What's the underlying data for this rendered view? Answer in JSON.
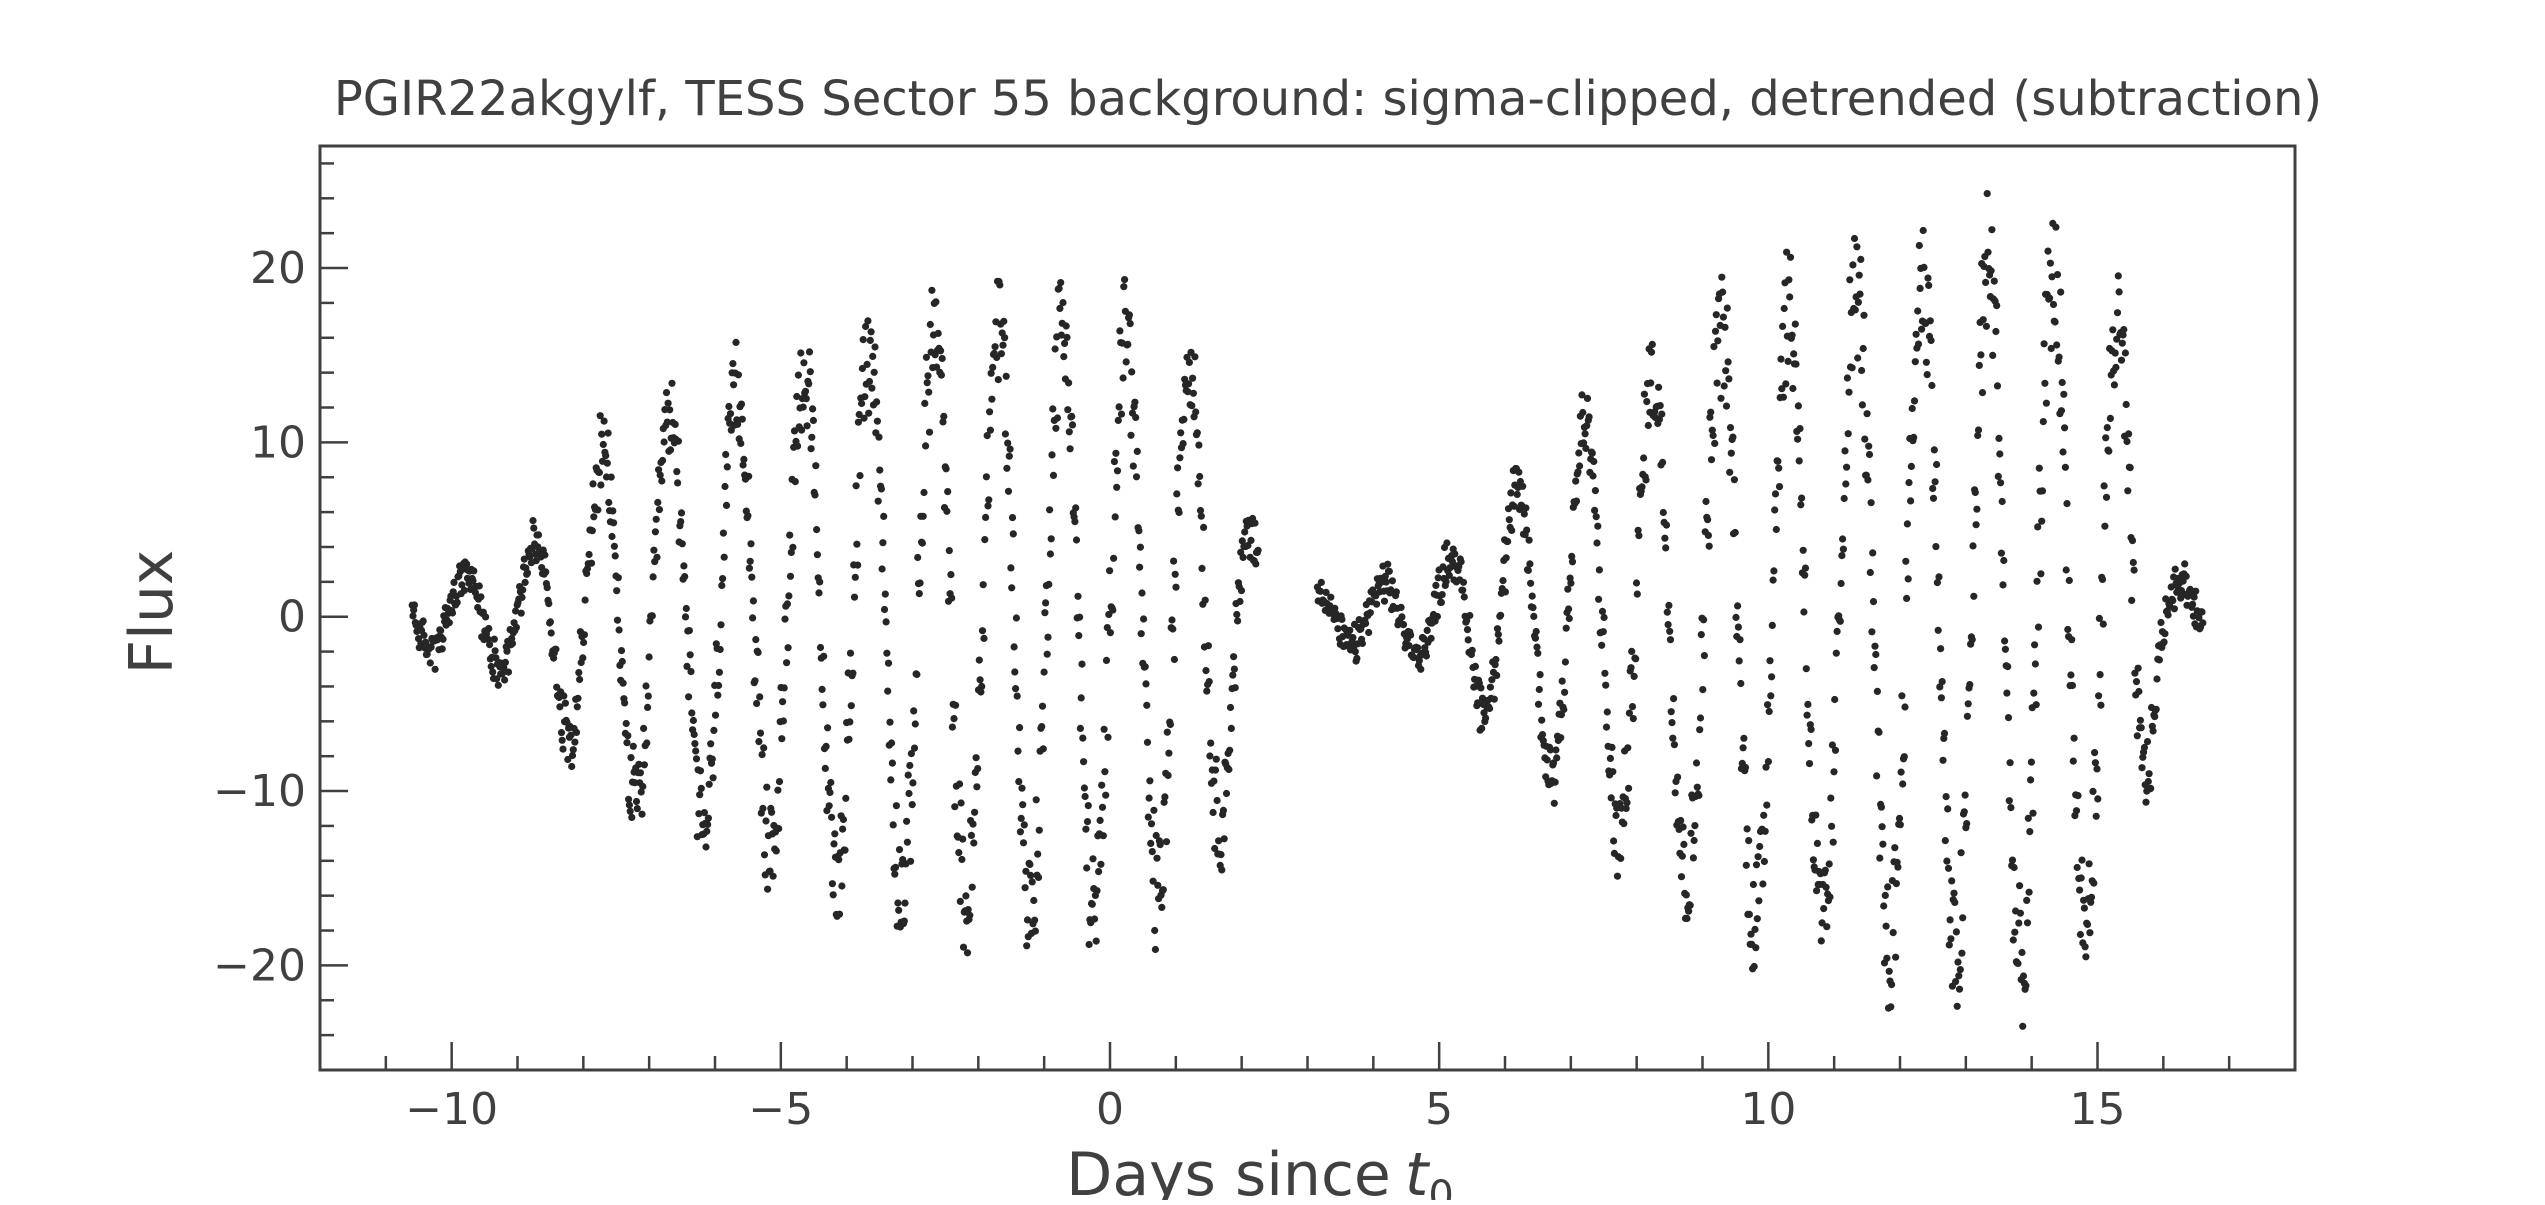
{
  "chart_data": {
    "type": "scatter",
    "title": "PGIR22akgylf, TESS Sector 55 background: sigma-clipped, detrended (subtraction)",
    "xlabel": "Days since",
    "xlabel_sub": "t",
    "xlabel_subscript": "0",
    "ylabel": "Flux",
    "xlim": [
      -12,
      18
    ],
    "ylim": [
      -26,
      27
    ],
    "grid": false,
    "marker_color": "#262626",
    "axis_color": "#404040",
    "x_ticks": [
      {
        "value": -10,
        "label": "−10"
      },
      {
        "value": -5,
        "label": "−5"
      },
      {
        "value": 0,
        "label": "0"
      },
      {
        "value": 5,
        "label": "5"
      },
      {
        "value": 10,
        "label": "10"
      },
      {
        "value": 15,
        "label": "15"
      }
    ],
    "y_ticks": [
      {
        "value": -20,
        "label": "−20"
      },
      {
        "value": -10,
        "label": "−10"
      },
      {
        "value": 0,
        "label": "0"
      },
      {
        "value": 10,
        "label": "10"
      },
      {
        "value": 20,
        "label": "20"
      }
    ],
    "segments": [
      {
        "x_start": -10.6,
        "x_end": 2.25
      },
      {
        "x_start": 3.15,
        "x_end": 16.6
      }
    ],
    "envelope": [
      {
        "x": -10.6,
        "amp": 2.0
      },
      {
        "x": -9.0,
        "amp": 3.5
      },
      {
        "x": -7.5,
        "amp": 12.0
      },
      {
        "x": -5.0,
        "amp": 16.0
      },
      {
        "x": -2.5,
        "amp": 19.5
      },
      {
        "x": 0.0,
        "amp": 20.0
      },
      {
        "x": 1.5,
        "amp": 17.0
      },
      {
        "x": 2.25,
        "amp": 4.0
      },
      {
        "x": 3.15,
        "amp": 1.8
      },
      {
        "x": 4.8,
        "amp": 2.5
      },
      {
        "x": 6.0,
        "amp": 7.5
      },
      {
        "x": 7.5,
        "amp": 14.0
      },
      {
        "x": 9.5,
        "amp": 20.0
      },
      {
        "x": 11.5,
        "amp": 22.0
      },
      {
        "x": 13.9,
        "amp": 24.5
      },
      {
        "x": 15.5,
        "amp": 19.0
      },
      {
        "x": 16.0,
        "amp": 3.0
      },
      {
        "x": 16.6,
        "amp": 2.0
      }
    ]
  }
}
